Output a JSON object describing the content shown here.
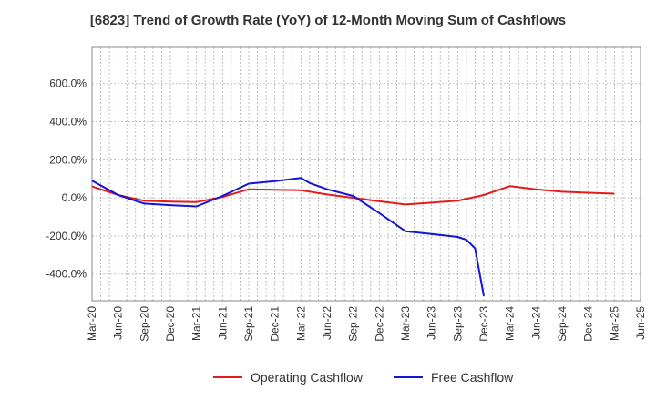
{
  "chart_data": {
    "type": "line",
    "title": "[6823]  Trend of Growth Rate (YoY) of 12-Month Moving Sum of Cashflows",
    "xlabel": "",
    "ylabel": "",
    "x_ticks": [
      "Mar-20",
      "Jun-20",
      "Sep-20",
      "Dec-20",
      "Mar-21",
      "Jun-21",
      "Sep-21",
      "Dec-21",
      "Mar-22",
      "Jun-22",
      "Sep-22",
      "Dec-22",
      "Mar-23",
      "Jun-23",
      "Sep-23",
      "Dec-23",
      "Mar-24",
      "Jun-24",
      "Sep-24",
      "Dec-24",
      "Mar-25",
      "Jun-25"
    ],
    "y_ticks": [
      {
        "value": 600,
        "label": "600.0%"
      },
      {
        "value": 400,
        "label": "400.0%"
      },
      {
        "value": 200,
        "label": "200.0%"
      },
      {
        "value": 0,
        "label": "0.0%"
      },
      {
        "value": -200,
        "label": "-200.0%"
      },
      {
        "value": -400,
        "label": "-400.0%"
      }
    ],
    "ylim": [
      -540,
      790
    ],
    "grid": true,
    "legend_position": "bottom",
    "series": [
      {
        "name": "Operating Cashflow",
        "color": "#e41a1c",
        "points": [
          [
            "Mar-20",
            60
          ],
          [
            "Jun-20",
            15
          ],
          [
            "Sep-20",
            -15
          ],
          [
            "Dec-20",
            -20
          ],
          [
            "Mar-21",
            -22
          ],
          [
            "Jun-21",
            5
          ],
          [
            "Sep-21",
            45
          ],
          [
            "Dec-21",
            42
          ],
          [
            "Mar-22",
            40
          ],
          [
            "Jun-22",
            18
          ],
          [
            "Sep-22",
            0
          ],
          [
            "Dec-22",
            -18
          ],
          [
            "Mar-23",
            -35
          ],
          [
            "Jun-23",
            -25
          ],
          [
            "Sep-23",
            -15
          ],
          [
            "Dec-23",
            15
          ],
          [
            "Mar-24",
            62
          ],
          [
            "Jun-24",
            45
          ],
          [
            "Sep-24",
            32
          ],
          [
            "Dec-24",
            27
          ],
          [
            "Mar-25",
            22
          ]
        ]
      },
      {
        "name": "Free Cashflow",
        "color": "#1414d4",
        "points": [
          [
            "Mar-20",
            90
          ],
          [
            "Jun-20",
            15
          ],
          [
            "Sep-20",
            -30
          ],
          [
            "Dec-20",
            -38
          ],
          [
            "Mar-21",
            -45
          ],
          [
            "Jun-21",
            10
          ],
          [
            "Sep-21",
            75
          ],
          [
            "Dec-21",
            88
          ],
          [
            "Mar-22",
            105
          ],
          [
            "Apr-22",
            78
          ],
          [
            "Jun-22",
            45
          ],
          [
            "Sep-22",
            10
          ],
          [
            "Dec-22",
            -80
          ],
          [
            "Mar-23",
            -175
          ],
          [
            "Jun-23",
            -190
          ],
          [
            "Sep-23",
            -205
          ],
          [
            "Oct-23",
            -220
          ],
          [
            "Nov-23",
            -265
          ],
          [
            "Dec-23",
            -515
          ]
        ]
      }
    ]
  }
}
